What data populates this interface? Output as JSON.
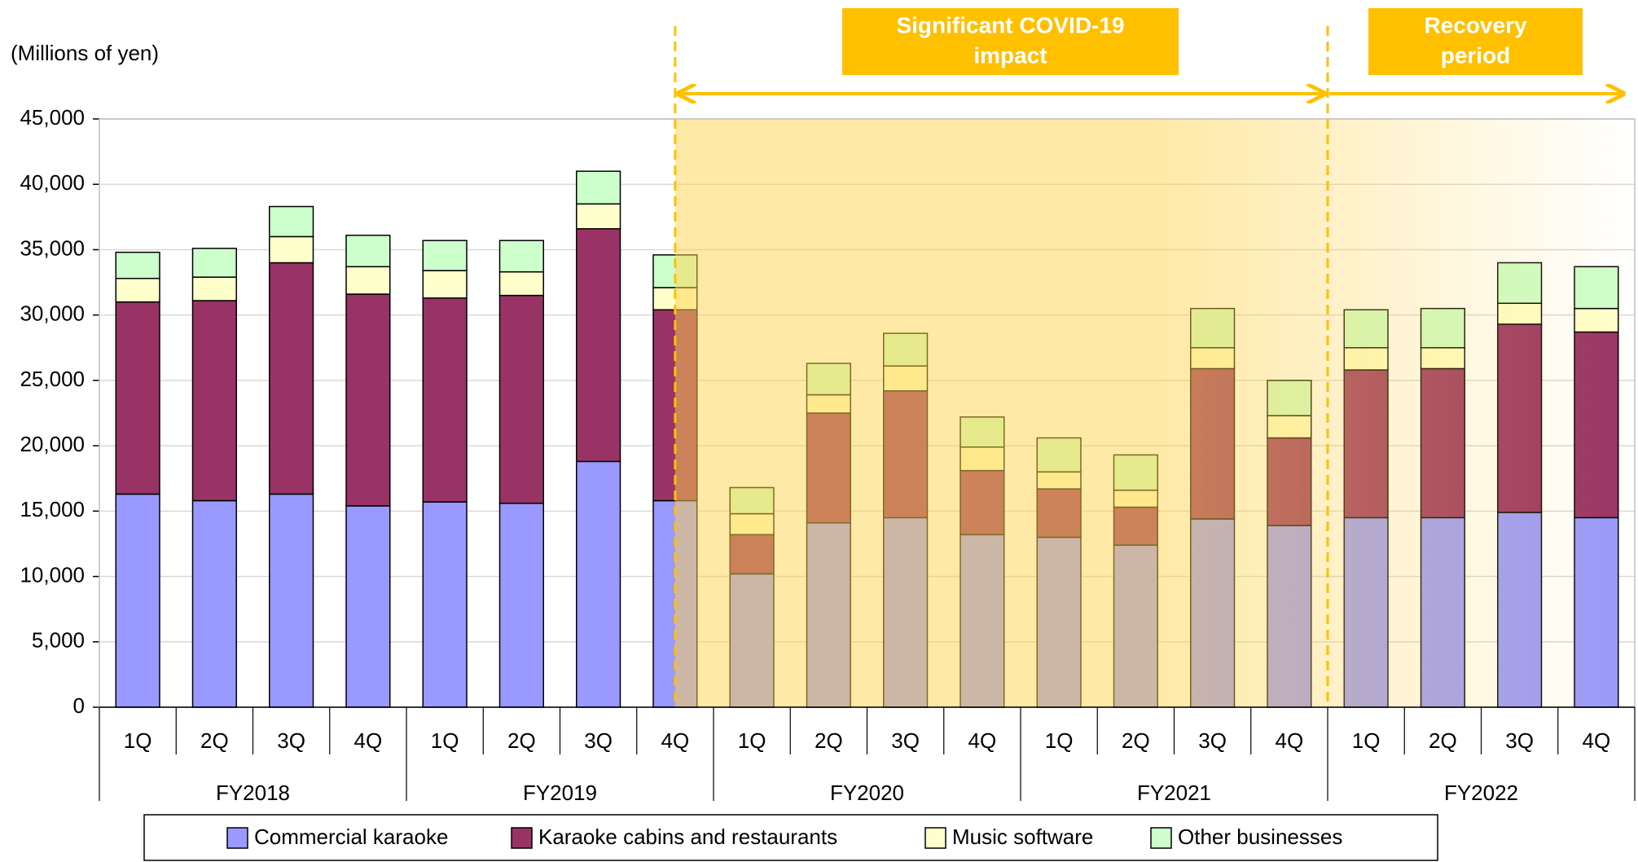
{
  "chart_data": {
    "type": "stacked_bar",
    "y_axis_label": "(Millions of yen)",
    "categories": [
      "1Q",
      "2Q",
      "3Q",
      "4Q",
      "1Q",
      "2Q",
      "3Q",
      "4Q",
      "1Q",
      "2Q",
      "3Q",
      "4Q",
      "1Q",
      "2Q",
      "3Q",
      "4Q",
      "1Q",
      "2Q",
      "3Q",
      "4Q"
    ],
    "groups": [
      "FY2018",
      "FY2019",
      "FY2020",
      "FY2021",
      "FY2022"
    ],
    "series": [
      {
        "name": "Commercial karaoke",
        "color": "#9999ff",
        "values": [
          16300,
          15800,
          16300,
          15400,
          15700,
          15600,
          18800,
          15800,
          10200,
          14100,
          14500,
          13200,
          13000,
          12400,
          14400,
          13900,
          14500,
          14500,
          14900,
          14500
        ]
      },
      {
        "name": "Karaoke cabins and restaurants",
        "color": "#993366",
        "values": [
          14700,
          15300,
          17700,
          16200,
          15600,
          15900,
          17800,
          14600,
          3000,
          8400,
          9700,
          4900,
          3700,
          2900,
          11500,
          6700,
          11300,
          11400,
          14400,
          14200
        ]
      },
      {
        "name": "Music software",
        "color": "#ffffcc",
        "values": [
          1800,
          1800,
          2000,
          2100,
          2100,
          1800,
          1900,
          1700,
          1600,
          1400,
          1900,
          1800,
          1300,
          1300,
          1600,
          1700,
          1700,
          1600,
          1600,
          1800
        ]
      },
      {
        "name": "Other businesses",
        "color": "#ccffcc",
        "values": [
          2000,
          2200,
          2300,
          2400,
          2300,
          2400,
          2500,
          2500,
          2000,
          2400,
          2500,
          2300,
          2600,
          2700,
          3000,
          2700,
          2900,
          3000,
          3100,
          3200
        ]
      }
    ],
    "ylim": [
      0,
      45000
    ],
    "yticks": [
      0,
      {
        "value": 5000,
        "label": "5,000"
      },
      {
        "value": 10000,
        "label": "10,000"
      },
      {
        "value": 15000,
        "label": "15,000"
      },
      {
        "value": 20000,
        "label": "20,000"
      },
      {
        "value": 25000,
        "label": "25,000"
      },
      {
        "value": 30000,
        "label": "30,000"
      },
      {
        "value": 35000,
        "label": "35,000"
      },
      {
        "value": 40000,
        "label": "40,000"
      },
      {
        "value": 45000,
        "label": "45,000"
      }
    ],
    "grid": true,
    "annotations": [
      [
        "Significant COVID-19",
        "impact"
      ],
      [
        "Recovery",
        "period"
      ]
    ]
  }
}
